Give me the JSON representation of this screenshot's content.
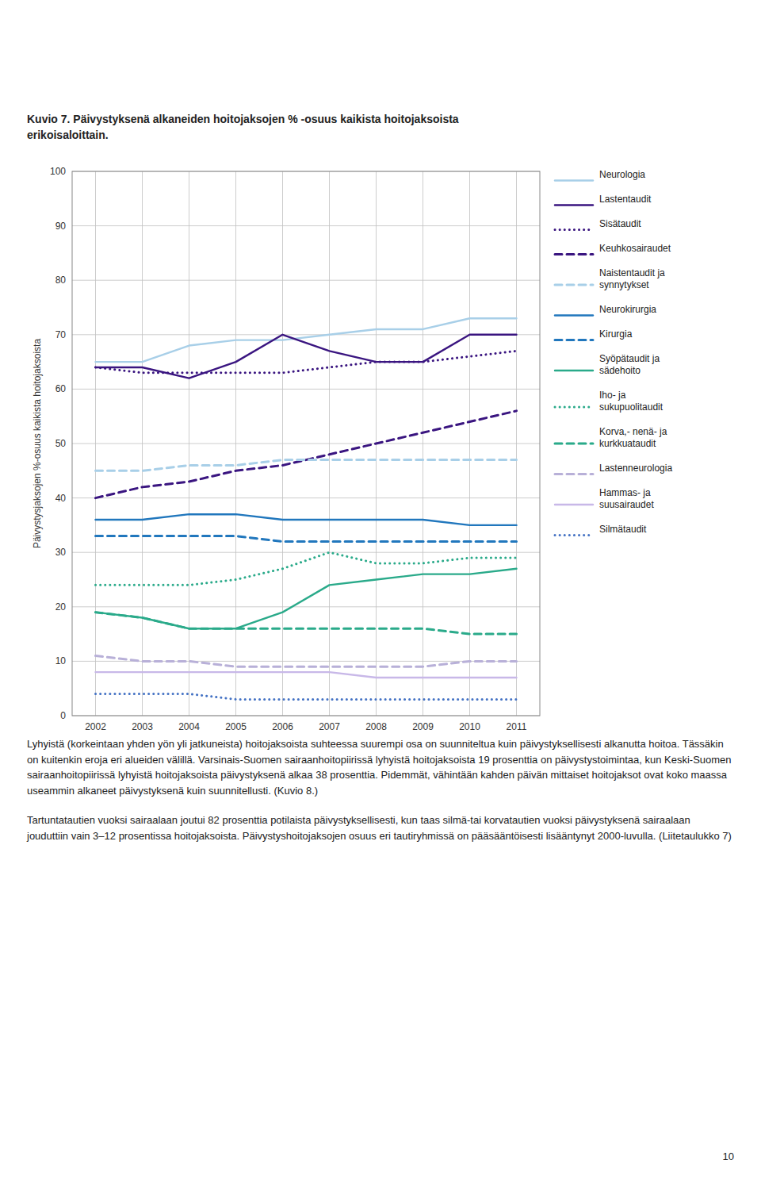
{
  "chart_data": {
    "type": "line",
    "title": "Kuvio 7.  Päivystyksenä alkaneiden hoitojaksojen % -osuus kaikista hoitojaksoista\nerikoisaloittain.",
    "y_label": "Päivystysjaksojen %-osuus kaikista hoitojaksoista",
    "x": [
      2002,
      2003,
      2004,
      2005,
      2006,
      2007,
      2008,
      2009,
      2010,
      2011
    ],
    "xlim": [
      2001.5,
      2011.5
    ],
    "xticks": [
      2002,
      2003,
      2004,
      2005,
      2006,
      2007,
      2008,
      2009,
      2010,
      2011
    ],
    "ylim": [
      0,
      100
    ],
    "yticks": [
      0,
      10,
      20,
      30,
      40,
      50,
      60,
      70,
      80,
      90,
      100
    ],
    "grid": true,
    "legend": "right",
    "series": [
      {
        "name": "Neurologia",
        "color": "#a8cfe8",
        "line_style": "solid",
        "values": [
          65,
          65,
          68,
          69,
          69,
          70,
          71,
          71,
          73,
          73
        ]
      },
      {
        "name": "Lastentaudit",
        "color": "#3a1580",
        "line_style": "solid",
        "values": [
          64,
          64,
          62,
          65,
          70,
          67,
          65,
          65,
          70,
          70
        ]
      },
      {
        "name": "Sisätaudit",
        "color": "#3a1580",
        "line_style": "dotted",
        "values": [
          64,
          63,
          63,
          63,
          63,
          64,
          65,
          65,
          66,
          67
        ]
      },
      {
        "name": "Keuhkosairaudet",
        "color": "#3a1580",
        "line_style": "dashed",
        "values": [
          40,
          42,
          43,
          45,
          46,
          48,
          50,
          52,
          54,
          56
        ]
      },
      {
        "name": "Naistentaudit ja\nsynnytykset",
        "color": "#a8cfe8",
        "line_style": "dashed",
        "values": [
          45,
          45,
          46,
          46,
          47,
          47,
          47,
          47,
          47,
          47
        ]
      },
      {
        "name": "Neurokirurgia",
        "color": "#2177bd",
        "line_style": "solid",
        "values": [
          36,
          36,
          37,
          37,
          36,
          36,
          36,
          36,
          35,
          35
        ]
      },
      {
        "name": "Kirurgia",
        "color": "#2177bd",
        "line_style": "dashed",
        "values": [
          33,
          33,
          33,
          33,
          32,
          32,
          32,
          32,
          32,
          32
        ]
      },
      {
        "name": "Syöpätaudit ja\nsädehoito",
        "color": "#2aaa8a",
        "line_style": "solid",
        "values": [
          19,
          18,
          16,
          16,
          19,
          24,
          25,
          26,
          26,
          27
        ]
      },
      {
        "name": "Iho- ja\nsukupuolitaudit",
        "color": "#2aaa8a",
        "line_style": "dotted",
        "values": [
          24,
          24,
          24,
          25,
          27,
          30,
          28,
          28,
          29,
          29
        ]
      },
      {
        "name": "Korva,- nenä- ja\nkurkkuataudit",
        "color": "#2aaa8a",
        "line_style": "dashed",
        "values": [
          19,
          18,
          16,
          16,
          16,
          16,
          16,
          16,
          15,
          15
        ]
      },
      {
        "name": "Lastenneurologia",
        "color": "#b8b0d8",
        "line_style": "dashed",
        "values": [
          11,
          10,
          10,
          9,
          9,
          9,
          9,
          9,
          10,
          10
        ]
      },
      {
        "name": "Hammas- ja\nsuusairaudet",
        "color": "#c8b8e8",
        "line_style": "solid",
        "values": [
          8,
          8,
          8,
          8,
          8,
          8,
          7,
          7,
          7,
          7
        ]
      },
      {
        "name": "Silmätaudit",
        "color": "#4472c4",
        "line_style": "dotted",
        "values": [
          4,
          4,
          4,
          3,
          3,
          3,
          3,
          3,
          3,
          3
        ]
      }
    ],
    "annotations": [
      "Lyhyistä (korkeintaan yhden yön yli jatkuneista) hoitojaksoista suhteessa suurempi osa on suunniteltua kuin päivystyksellisesti alkanutta hoitoa. Tässäkin on kuitenkin eroja eri alueiden välillä.  Varsinais-Suomen sairaanhoitopiirissä lyhyistä hoitojaksoista 19 prosenttia on päivystystoimintaa, kun Keski-Suomen sairaanhoitopiirissä lyhyistä hoitojaksoista päivystyksenä alkaa 38 prosenttia.  Pidemmät, vähintään kahden päivän mittaiset hoitojaksot ovat koko maassa useammin alkaneet päivystyksenä kuin suunnitellusti. (Kuvio 8.)",
      "Tartuntatautien vuoksi sairaalaan joutui 82 prosenttia potilaista päivystyksellisesti, kun taas silmä-tai korvatautien vuoksi päivystyksenä sairaalaan jouduttiin vain 3–12 prosentissa hoitojaksoista. Päivystyshoitojaksojen osuus eri tautiryhmissä on pääsääntöisesti lisääntynyt 2000-luvulla. (Liitetaulukko 7)",
      "10"
    ]
  }
}
